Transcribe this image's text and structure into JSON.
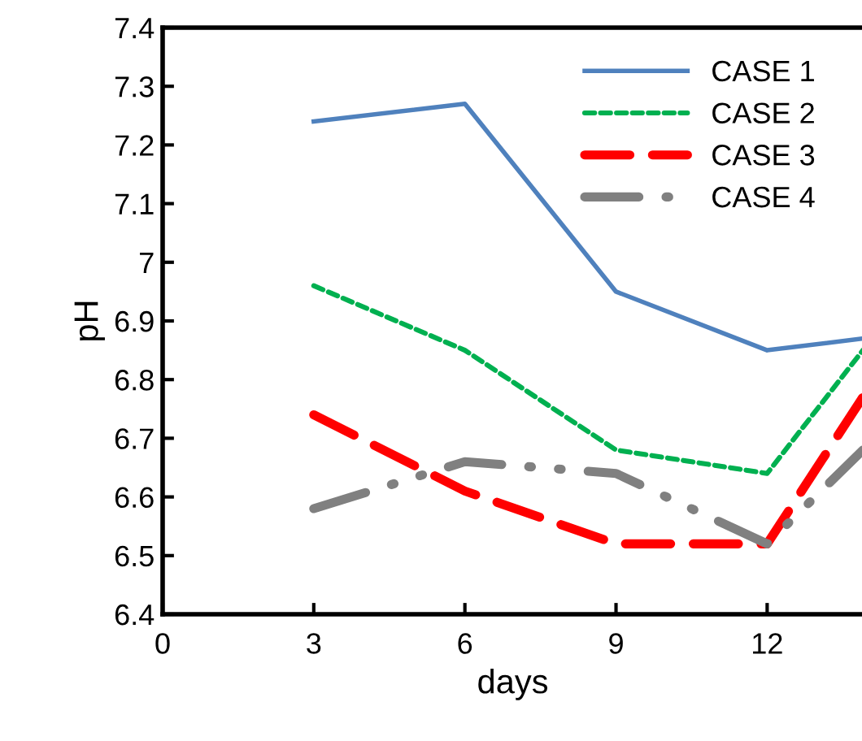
{
  "chart_data": {
    "type": "line",
    "xlabel": "days",
    "ylabel": "pH",
    "xlim": [
      0,
      13.9
    ],
    "xticks": [
      0,
      3,
      6,
      9,
      12
    ],
    "ylim": [
      6.4,
      7.4
    ],
    "yticks": [
      6.4,
      6.5,
      6.6,
      6.7,
      6.8,
      6.9,
      7,
      7.1,
      7.2,
      7.3,
      7.4
    ],
    "legend": "top right",
    "grid": false,
    "series": [
      {
        "name": "CASE 1",
        "color": "#4f81bd",
        "line_style": "solid",
        "x": [
          3,
          6,
          9,
          12,
          13.9
        ],
        "values": [
          7.24,
          7.27,
          6.95,
          6.85,
          6.87
        ]
      },
      {
        "name": "CASE 2",
        "color": "#00b050",
        "line_style": "dotted",
        "x": [
          3,
          6,
          9,
          12,
          13.9
        ],
        "values": [
          6.96,
          6.85,
          6.68,
          6.64,
          6.85
        ]
      },
      {
        "name": "CASE 3",
        "color": "#ff0000",
        "line_style": "dashed",
        "x": [
          3,
          6,
          9,
          12,
          13.9
        ],
        "values": [
          6.74,
          6.61,
          6.52,
          6.52,
          6.77
        ]
      },
      {
        "name": "CASE 4",
        "color": "#808080",
        "line_style": "dashdot",
        "x": [
          3,
          6,
          9,
          12,
          13.9
        ],
        "values": [
          6.58,
          6.66,
          6.64,
          6.52,
          6.68
        ]
      }
    ]
  }
}
